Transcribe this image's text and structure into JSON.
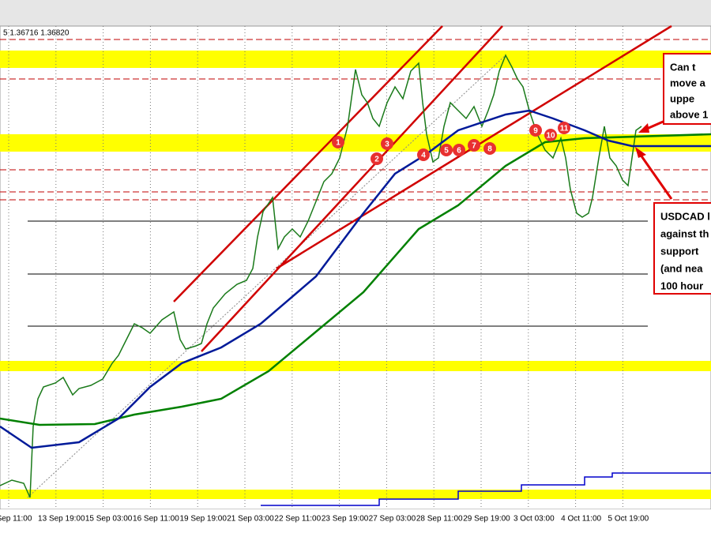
{
  "chart_data": {
    "type": "candlestick",
    "header": "5 1.36716 1.36820",
    "x_tick_labels": [
      "Sep 11:00",
      "13 Sep 19:00",
      "15 Sep 03:00",
      "16 Sep 11:00",
      "19 Sep 19:00",
      "21 Sep 03:00",
      "22 Sep 11:00",
      "23 Sep 19:00",
      "27 Sep 03:00",
      "28 Sep 11:00",
      "29 Sep 19:00",
      "3 Oct 03:00",
      "4 Oct 11:00",
      "5 Oct 19:00"
    ],
    "markers": [
      "1",
      "2",
      "3",
      "4",
      "5",
      "6",
      "7",
      "8",
      "9",
      "10",
      "11"
    ],
    "annotations": [
      {
        "lines": [
          "Can t",
          "move a",
          "uppe",
          "above 1"
        ]
      },
      {
        "lines": [
          "USDCAD l",
          "against th",
          "support",
          "(and nea",
          "100 hour"
        ]
      }
    ]
  }
}
